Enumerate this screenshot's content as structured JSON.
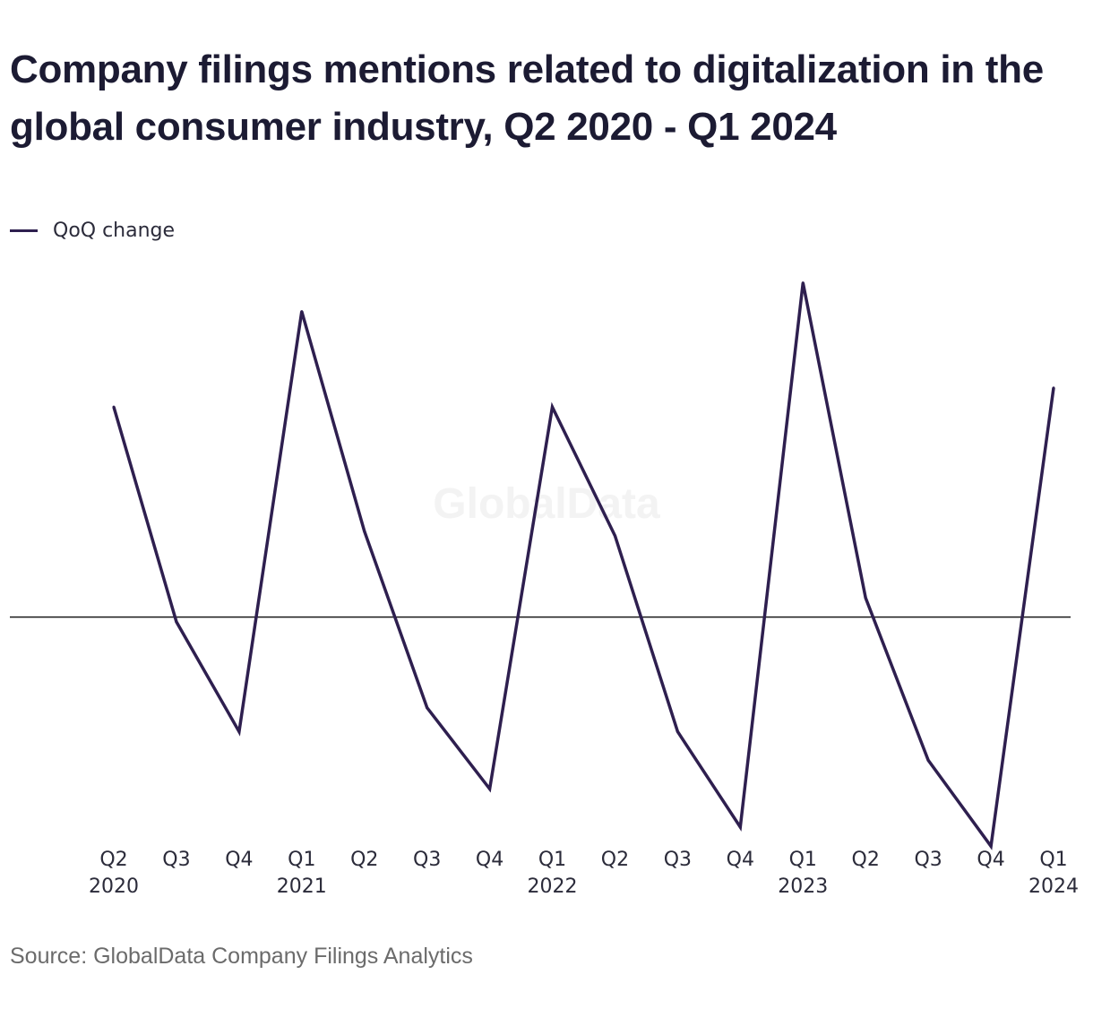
{
  "chart_data": {
    "type": "line",
    "title": "Company filings mentions related to digitalization in the global consumer industry, Q2 2020 - Q1 2024",
    "legend_position": "top-left",
    "grid": false,
    "zero_line": true,
    "categories": [
      {
        "quarter": "Q2",
        "year": "2020"
      },
      {
        "quarter": "Q3",
        "year": ""
      },
      {
        "quarter": "Q4",
        "year": ""
      },
      {
        "quarter": "Q1",
        "year": "2021"
      },
      {
        "quarter": "Q2",
        "year": ""
      },
      {
        "quarter": "Q3",
        "year": ""
      },
      {
        "quarter": "Q4",
        "year": ""
      },
      {
        "quarter": "Q1",
        "year": "2022"
      },
      {
        "quarter": "Q2",
        "year": ""
      },
      {
        "quarter": "Q3",
        "year": ""
      },
      {
        "quarter": "Q4",
        "year": ""
      },
      {
        "quarter": "Q1",
        "year": "2023"
      },
      {
        "quarter": "Q2",
        "year": ""
      },
      {
        "quarter": "Q3",
        "year": ""
      },
      {
        "quarter": "Q4",
        "year": ""
      },
      {
        "quarter": "Q1",
        "year": "2024"
      }
    ],
    "series": [
      {
        "name": "QoQ change",
        "color": "#2e1f4f",
        "values": [
          22,
          -0.5,
          -12,
          32,
          9,
          -9.5,
          -18,
          22,
          8.5,
          -12,
          -22,
          35,
          2,
          -15,
          -24,
          24
        ]
      }
    ],
    "ylim": [
      -25,
      36
    ]
  },
  "watermark": "GlobalData",
  "source": "Source: GlobalData Company Filings Analytics"
}
